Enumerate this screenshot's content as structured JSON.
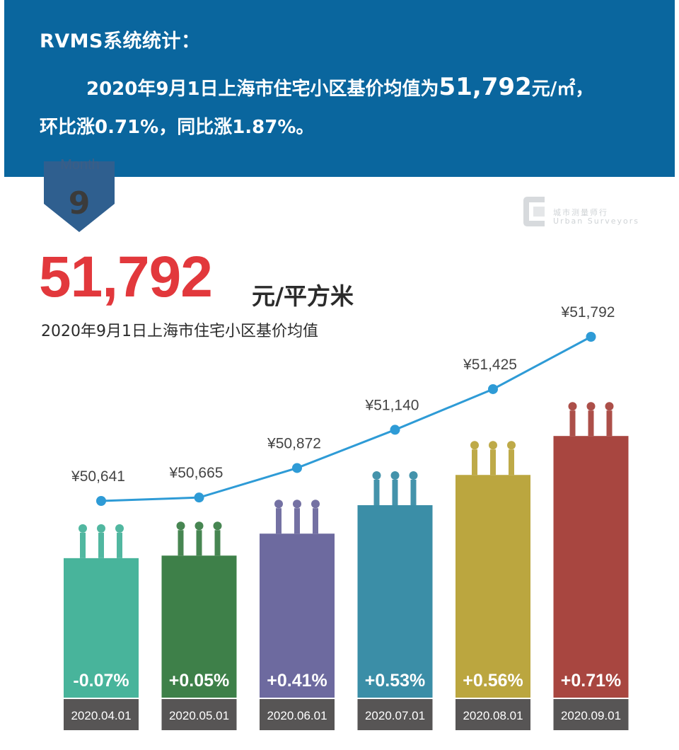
{
  "banner": {
    "title": "RVMS系统统计：",
    "line1_prefix": "2020年9月1日上海市住宅小区基价均值为",
    "line1_value": "51,792",
    "line1_suffix": "元/㎡，",
    "line2": "环比涨0.71%，同比涨1.87%。"
  },
  "month": {
    "label": "Month",
    "number": "9"
  },
  "watermark": {
    "line1": "城市测量师行",
    "line2": "Urban",
    "line3": "Surveyors"
  },
  "hero": {
    "value": "51,792",
    "unit": "元/平方米",
    "caption": "2020年9月1日上海市住宅小区基价均值"
  },
  "chart_data": {
    "type": "bar",
    "categories": [
      "2020.04.01",
      "2020.05.01",
      "2020.06.01",
      "2020.07.01",
      "2020.08.01",
      "2020.09.01"
    ],
    "series": [
      {
        "values": [
          50641,
          50665,
          50872,
          51140,
          51425,
          51792
        ],
        "labels": [
          "¥50,641",
          "¥50,665",
          "¥50,872",
          "¥51,140",
          "¥51,425",
          "¥51,792"
        ]
      },
      {
        "values": [
          -0.07,
          0.05,
          0.41,
          0.53,
          0.56,
          0.71
        ],
        "labels": [
          "-0.07%",
          "+0.05%",
          "+0.41%",
          "+0.53%",
          "+0.56%",
          "+0.71%"
        ]
      }
    ],
    "colors": [
      "#48b49b",
      "#3e8049",
      "#6d6a9f",
      "#3b8ea7",
      "#bba63f",
      "#a84640"
    ],
    "line_color": "#2e9bd6",
    "date_band_color": "#575555"
  }
}
